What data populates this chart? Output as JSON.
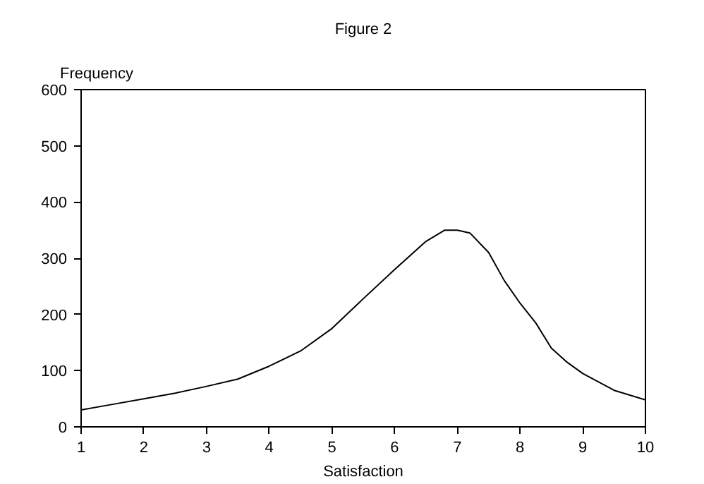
{
  "chart_data": {
    "type": "line",
    "title": "Figure 2",
    "xlabel": "Satisfaction",
    "ylabel": "Frequency",
    "x": [
      1,
      1.5,
      2,
      2.5,
      3,
      3.5,
      4,
      4.5,
      5,
      5.5,
      6,
      6.5,
      6.8,
      7,
      7.2,
      7.5,
      7.75,
      8,
      8.25,
      8.5,
      8.75,
      9,
      9.5,
      10
    ],
    "series": [
      {
        "color": "#000000",
        "values": [
          30,
          40,
          50,
          60,
          72,
          85,
          108,
          135,
          175,
          228,
          280,
          330,
          350,
          350,
          345,
          310,
          260,
          220,
          185,
          140,
          115,
          95,
          65,
          48
        ]
      }
    ],
    "xlim": [
      1,
      10
    ],
    "xticks": [
      1,
      2,
      3,
      4,
      5,
      6,
      7,
      8,
      9,
      10
    ],
    "ylim": [
      0,
      600
    ],
    "yticks": [
      0,
      100,
      200,
      300,
      400,
      500,
      600
    ],
    "grid": false,
    "marker": "none",
    "line_style": "solid"
  }
}
